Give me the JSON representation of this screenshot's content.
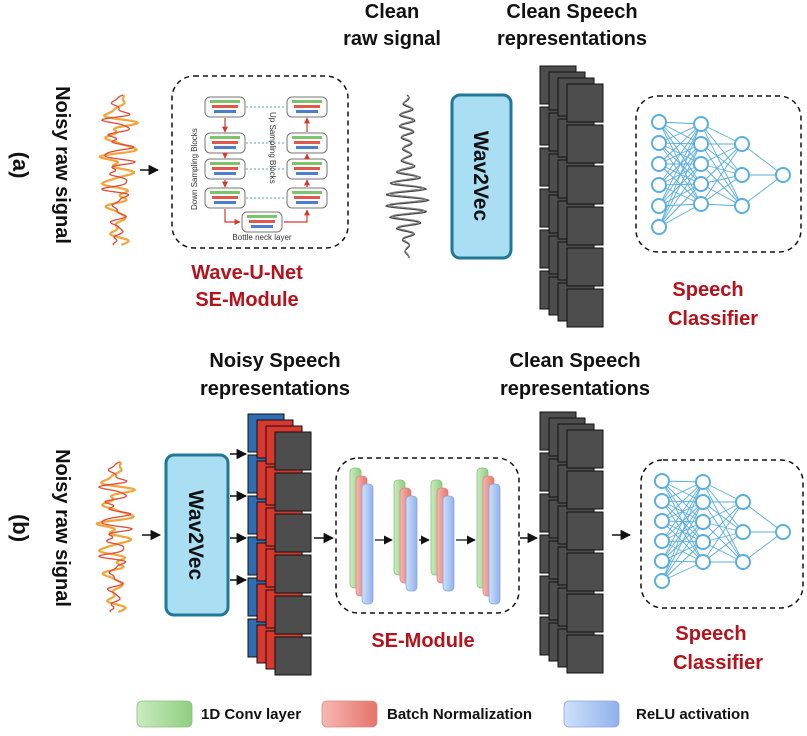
{
  "panel_a": {
    "tag": "(a)",
    "input_label": "Noisy raw signal",
    "clean_signal_label": [
      "Clean",
      "raw signal"
    ],
    "clean_repr_label": [
      "Clean Speech",
      "representations"
    ],
    "wave_u_net": {
      "caption": [
        "Wave-U-Net",
        "SE-Module"
      ],
      "down_label": "Down Sampling Blocks",
      "up_label": "Up Sampling Blocks",
      "bottleneck_label": "Bottle neck layer"
    },
    "encoder": "Wav2Vec",
    "classifier": [
      "Speech",
      "Classifier"
    ]
  },
  "panel_b": {
    "tag": "(b)",
    "input_label": "Noisy raw signal",
    "noisy_repr_label": [
      "Noisy Speech",
      "representations"
    ],
    "clean_repr_label": [
      "Clean Speech",
      "representations"
    ],
    "encoder": "Wav2Vec",
    "se_module": "SE-Module",
    "classifier": [
      "Speech",
      "Classifier"
    ]
  },
  "legend": [
    {
      "label": "1D Conv layer",
      "color": "#9fd88f"
    },
    {
      "label": "Batch Normalization",
      "color": "#ee8a82"
    },
    {
      "label": "ReLU activation",
      "color": "#9bbcf0"
    }
  ],
  "colors": {
    "accent_red": "#b5121b",
    "wav2vec_fill": "#a9def3",
    "wav2vec_stroke": "#1e7896",
    "neuron": "#5aaee0",
    "feature_map": "#4d4d4d",
    "noisy_map_blue": "#2e6db4",
    "noisy_map_red": "#d9382e",
    "noisy_wave_orange": "#f2a53a",
    "noisy_wave_red": "#e04c3a"
  }
}
